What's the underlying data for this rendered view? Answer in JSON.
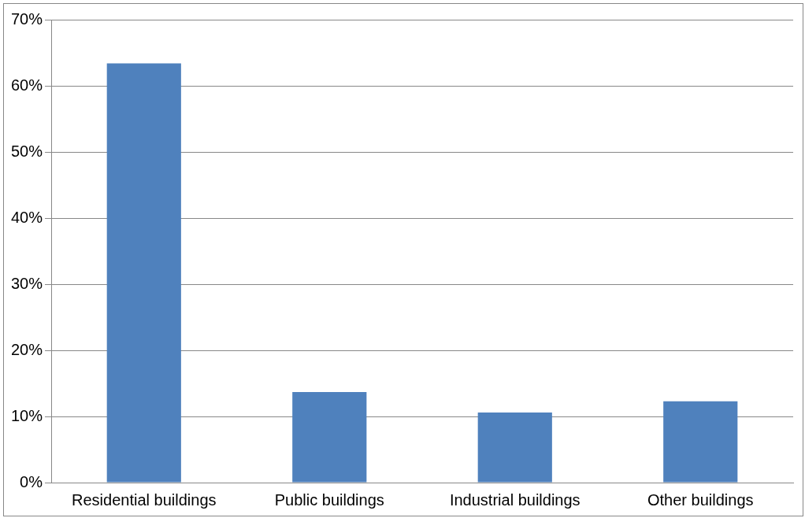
{
  "chart_data": {
    "type": "bar",
    "categories": [
      "Residential buildings",
      "Public buildings",
      "Industrial buildings",
      "Other buildings"
    ],
    "values": [
      63.4,
      13.7,
      10.6,
      12.3
    ],
    "color": "#4f81bd",
    "ylim": [
      0,
      70
    ],
    "yticks": [
      {
        "value": 0,
        "label": "0%"
      },
      {
        "value": 10,
        "label": "10%"
      },
      {
        "value": 20,
        "label": "20%"
      },
      {
        "value": 30,
        "label": "30%"
      },
      {
        "value": 40,
        "label": "40%"
      },
      {
        "value": 50,
        "label": "50%"
      },
      {
        "value": 60,
        "label": "60%"
      },
      {
        "value": 70,
        "label": "70%"
      }
    ],
    "grid": "y",
    "legend": false
  }
}
